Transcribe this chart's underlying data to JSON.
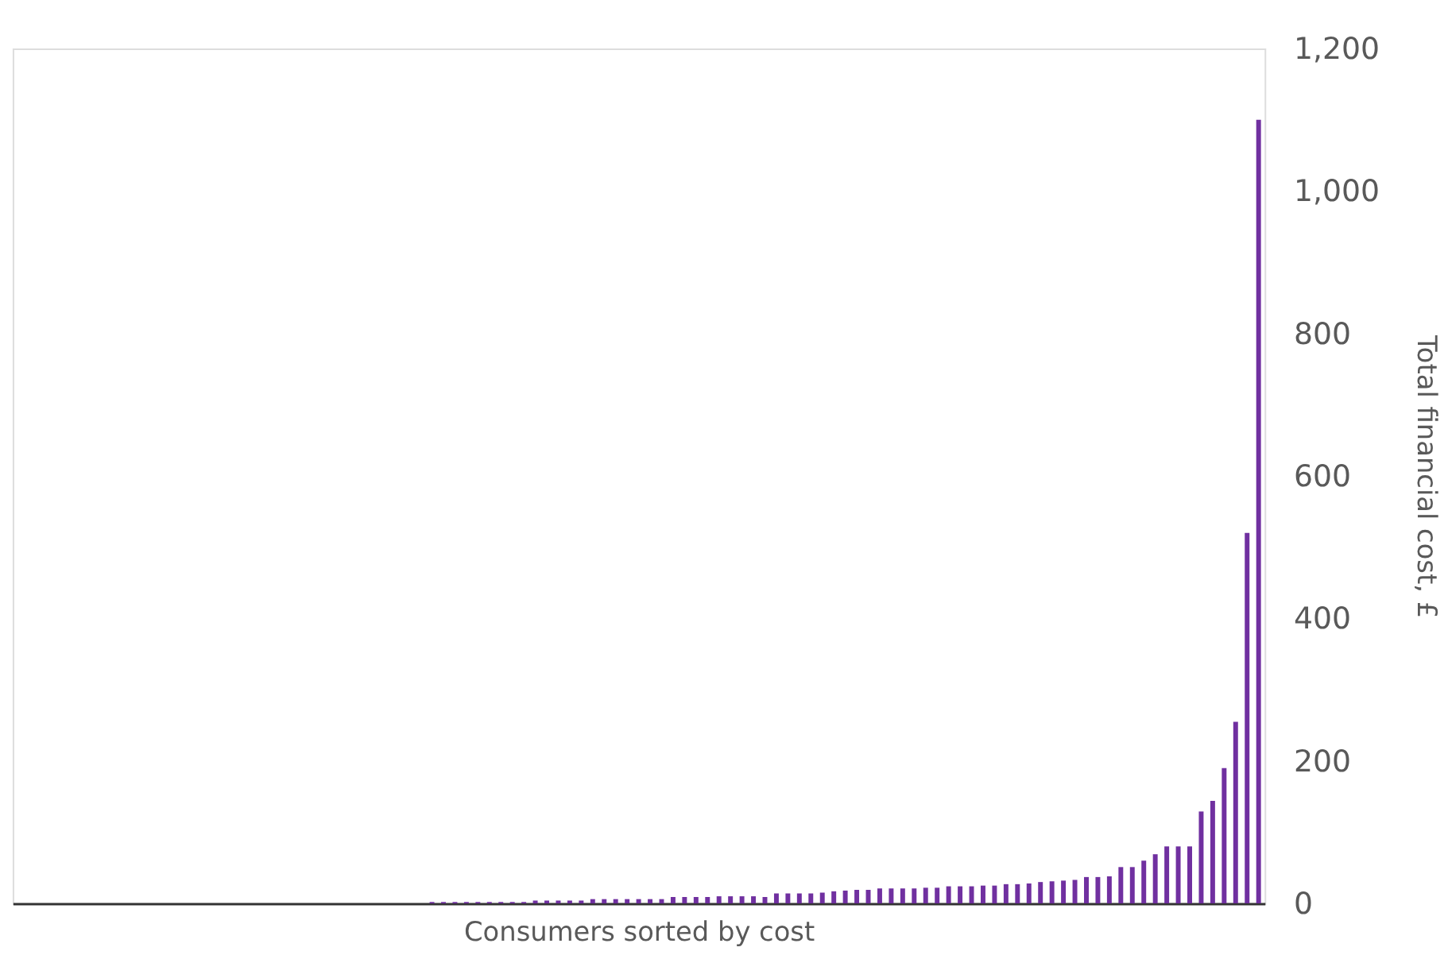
{
  "chart_data": {
    "type": "bar",
    "xlabel": "Consumers sorted by cost",
    "ylabel": "Total financial cost, £",
    "categories": [
      null,
      null,
      null,
      null,
      null,
      null,
      null,
      null,
      null,
      null,
      null,
      null,
      null,
      null,
      null,
      null,
      null,
      null,
      null,
      null,
      null,
      null,
      null,
      null,
      null,
      null,
      null,
      null,
      null,
      null,
      null,
      null,
      null,
      null,
      null,
      null,
      null,
      null,
      null,
      null,
      null,
      null,
      null,
      null,
      null,
      null,
      null,
      null,
      null,
      null,
      null,
      null,
      null,
      null,
      null,
      null,
      null,
      null,
      null,
      null,
      null,
      null,
      null,
      null,
      null,
      null,
      null,
      null,
      null,
      null,
      null,
      null,
      null,
      null,
      null,
      null,
      null,
      null,
      null,
      null,
      null,
      null,
      null,
      null,
      null,
      null,
      null,
      null,
      null,
      null,
      null,
      null,
      null,
      null,
      null,
      null,
      null,
      null,
      null,
      null,
      null,
      null,
      null,
      null,
      null,
      null,
      null,
      null,
      null
    ],
    "values": [
      0,
      0,
      0,
      0,
      0,
      0,
      0,
      0,
      0,
      0,
      0,
      0,
      0,
      0,
      0,
      0,
      0,
      0,
      0,
      0,
      0,
      0,
      0,
      0,
      0,
      0,
      0,
      0,
      0,
      0,
      0,
      0,
      0,
      0,
      0,
      0,
      2,
      2,
      2,
      2,
      2,
      2,
      2,
      2,
      2,
      4,
      4,
      4,
      4,
      4,
      6,
      6,
      6,
      6,
      6,
      6,
      6,
      9,
      9,
      9,
      9,
      10,
      10,
      10,
      10,
      9,
      14,
      14,
      14,
      14,
      15,
      17,
      18,
      19,
      19,
      21,
      21,
      21,
      21,
      22,
      22,
      24,
      24,
      24,
      25,
      25,
      27,
      27,
      28,
      30,
      31,
      32,
      33,
      37,
      37,
      38,
      51,
      51,
      60,
      69,
      80,
      80,
      80,
      129,
      144,
      190,
      255,
      520,
      1100
    ],
    "color": "#7030a0",
    "ylim": [
      0,
      1200
    ],
    "yticks": [
      0,
      200,
      400,
      600,
      800,
      {
        "value": 1000,
        "label": "1,000"
      },
      {
        "value": 1200,
        "label": "1,200"
      }
    ],
    "tick_labels": "y",
    "grid": false
  }
}
